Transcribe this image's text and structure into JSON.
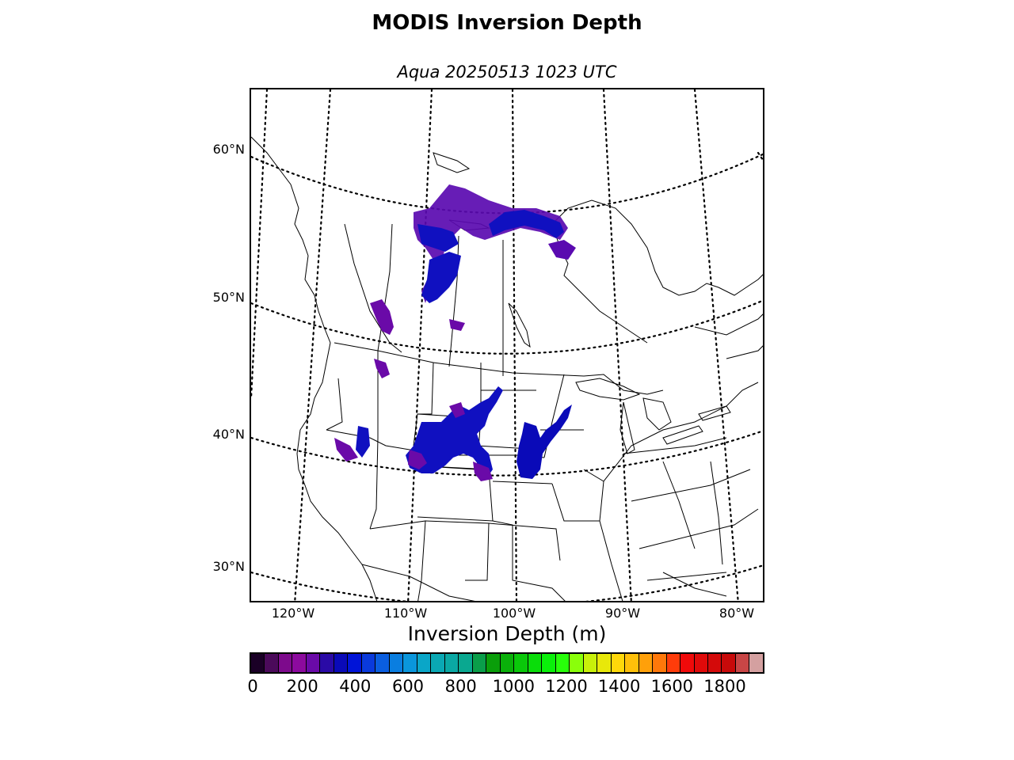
{
  "title": "MODIS Inversion Depth",
  "subtitle": "Aqua 20250513 1023 UTC",
  "map": {
    "latitude_labels": [
      "60°N",
      "50°N",
      "40°N",
      "30°N"
    ],
    "longitude_labels": [
      "120°W",
      "110°W",
      "100°W",
      "90°W",
      "80°W"
    ],
    "graticule_style": "dotted",
    "coverage": "western & central North America, Canadian prairies to northern Mexico"
  },
  "colorbar": {
    "label": "Inversion Depth (m)",
    "min": 0,
    "max": 1950,
    "step": 50,
    "tick_labels": [
      "0",
      "200",
      "400",
      "600",
      "800",
      "1000",
      "1200",
      "1400",
      "1600",
      "1800"
    ],
    "tick_values": [
      0,
      200,
      400,
      600,
      800,
      1000,
      1200,
      1400,
      1600,
      1800
    ],
    "colors": [
      "#1a0026",
      "#4b0a5a",
      "#7d0a8c",
      "#8c0a9e",
      "#6a0aa8",
      "#2a0aa6",
      "#0a0ab8",
      "#0014d8",
      "#0a3adc",
      "#0a5ee0",
      "#0a7ee0",
      "#0a96dc",
      "#0aa6c8",
      "#0aa8b4",
      "#0aa8a4",
      "#0aa890",
      "#0a9e4a",
      "#0a9e0a",
      "#0ab00a",
      "#0ac80a",
      "#0add0a",
      "#0af00a",
      "#28ff0a",
      "#8aff0a",
      "#c8f00a",
      "#e8e80a",
      "#ffd80a",
      "#ffc00a",
      "#ffa00a",
      "#ff780a",
      "#ff3c0a",
      "#f00a0a",
      "#e00a0a",
      "#d40a0a",
      "#c80a0a",
      "#c84646",
      "#d4a0a0"
    ]
  },
  "data_regions": [
    {
      "name": "northern-saskatchewan-manitoba",
      "depth_m": [
        200,
        400
      ]
    },
    {
      "name": "southern-alberta",
      "depth_m": [
        150,
        300
      ]
    },
    {
      "name": "wyoming-colorado",
      "depth_m": [
        250,
        450
      ]
    },
    {
      "name": "nebraska-kansas",
      "depth_m": [
        350,
        450
      ]
    },
    {
      "name": "idaho-nevada",
      "depth_m": [
        150,
        400
      ]
    }
  ]
}
